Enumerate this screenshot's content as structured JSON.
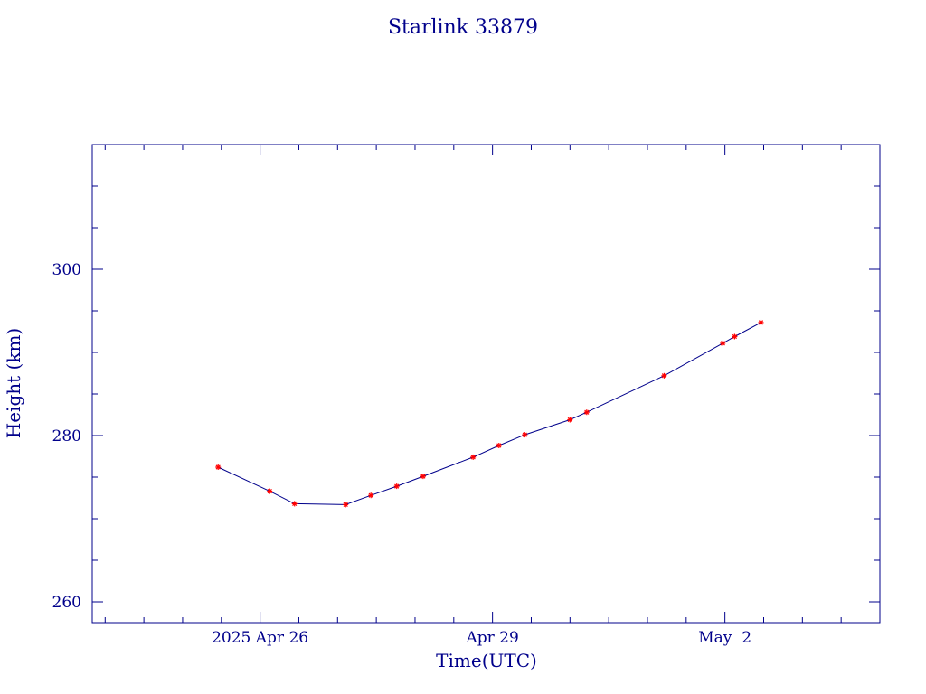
{
  "colors": {
    "axis": "#00008b",
    "line": "#00008b",
    "marker": "#ff0000",
    "background": "#ffffff"
  },
  "chart_data": {
    "type": "line",
    "title": "Starlink 33879",
    "xlabel": "Time(UTC)",
    "ylabel": "Height (km)",
    "x_unit": "days",
    "xlim": [
      "2025-04-23T20:00",
      "2025-05-04T00:00"
    ],
    "ylim": [
      257.5,
      315
    ],
    "x_tick_labels": [
      {
        "label": "2025 Apr 26",
        "x": "2025-04-26T00:00"
      },
      {
        "label": "Apr 29",
        "x": "2025-04-29T00:00"
      },
      {
        "label": "May  2",
        "x": "2025-05-02T00:00"
      }
    ],
    "y_ticks": [
      260,
      280,
      300
    ],
    "grid": false,
    "legend": "none",
    "series": [
      {
        "x": [
          "2025-04-25T11:00",
          "2025-04-26T03:00",
          "2025-04-26T10:40",
          "2025-04-27T02:30",
          "2025-04-27T10:20",
          "2025-04-27T18:20",
          "2025-04-28T02:30",
          "2025-04-28T18:00",
          "2025-04-29T02:00",
          "2025-04-29T10:00",
          "2025-04-30T00:00",
          "2025-04-30T05:10",
          "2025-05-01T05:10",
          "2025-05-01T23:20",
          "2025-05-02T03:00",
          "2025-05-02T11:10"
        ],
        "y": [
          276.2,
          273.3,
          271.8,
          271.7,
          272.8,
          273.9,
          275.1,
          277.4,
          278.8,
          280.1,
          281.9,
          282.8,
          287.2,
          291.1,
          291.9,
          293.6
        ]
      }
    ]
  }
}
